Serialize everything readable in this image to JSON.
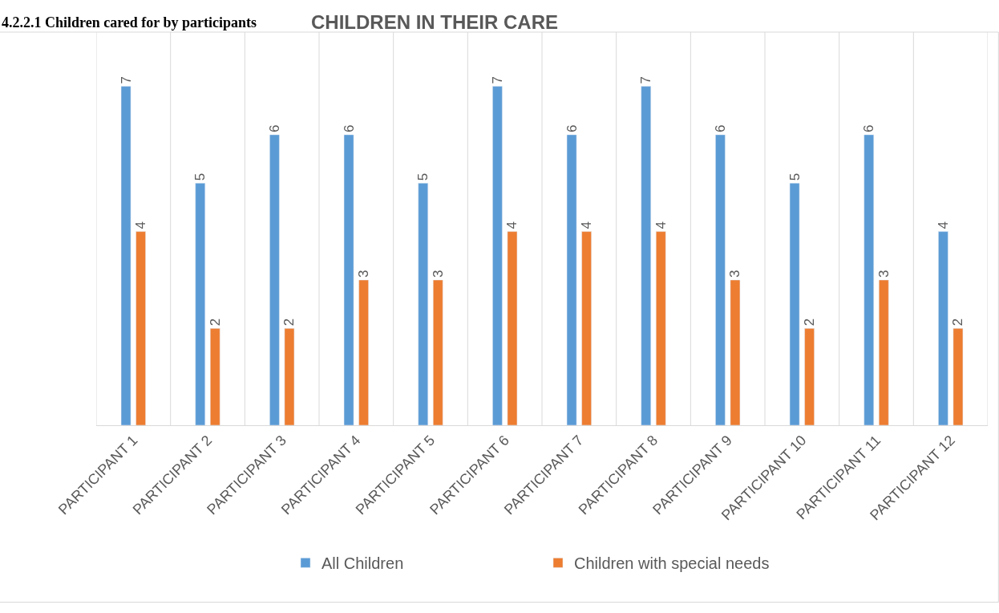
{
  "chart_data": {
    "type": "bar",
    "title": "CHILDREN IN THEIR CARE",
    "annotations": [
      "4.2.2.1 Children cared for by participants"
    ],
    "categories": [
      "PARTICIPANT 1",
      "PARTICIPANT 2",
      "PARTICIPANT 3",
      "PARTICIPANT 4",
      "PARTICIPANT 5",
      "PARTICIPANT 6",
      "PARTICIPANT 7",
      "PARTICIPANT 8",
      "PARTICIPANT 9",
      "PARTICIPANT 10",
      "PARTICIPANT 11",
      "PARTICIPANT 12"
    ],
    "series": [
      {
        "name": "All Children",
        "color": "#5b9bd5",
        "values": [
          7,
          5,
          6,
          6,
          5,
          7,
          6,
          7,
          6,
          5,
          6,
          4
        ]
      },
      {
        "name": "Children with special needs",
        "color": "#ed7d31",
        "values": [
          4,
          2,
          2,
          3,
          3,
          4,
          4,
          4,
          3,
          2,
          3,
          2
        ]
      }
    ],
    "data_labels": true,
    "grid": "x",
    "legend": "bottom",
    "tick_labels": "x"
  }
}
